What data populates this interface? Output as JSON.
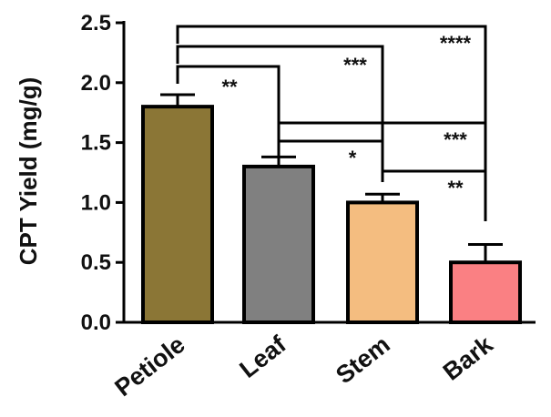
{
  "chart_data": {
    "type": "bar",
    "title": "",
    "xlabel": "",
    "ylabel": "CPT Yield (mg/g)",
    "ylim": [
      0,
      2.5
    ],
    "yticks": [
      "0.0",
      "0.5",
      "1.0",
      "1.5",
      "2.0",
      "2.5"
    ],
    "categories": [
      "Petiole",
      "Leaf",
      "Stem",
      "Bark"
    ],
    "values": [
      1.8,
      1.3,
      1.0,
      0.5
    ],
    "errors": [
      0.1,
      0.08,
      0.07,
      0.15
    ],
    "colors": [
      "#8B7636",
      "#808080",
      "#F4BD80",
      "#FA8083"
    ],
    "grid": false,
    "significance": [
      {
        "from": "Petiole",
        "to": "Leaf",
        "label": "**"
      },
      {
        "from": "Petiole",
        "to": "Stem",
        "label": "***"
      },
      {
        "from": "Petiole",
        "to": "Bark",
        "label": "****"
      },
      {
        "from": "Leaf",
        "to": "Stem",
        "label": "*"
      },
      {
        "from": "Leaf",
        "to": "Bark",
        "label": "***"
      },
      {
        "from": "Stem",
        "to": "Bark",
        "label": "**"
      }
    ]
  }
}
